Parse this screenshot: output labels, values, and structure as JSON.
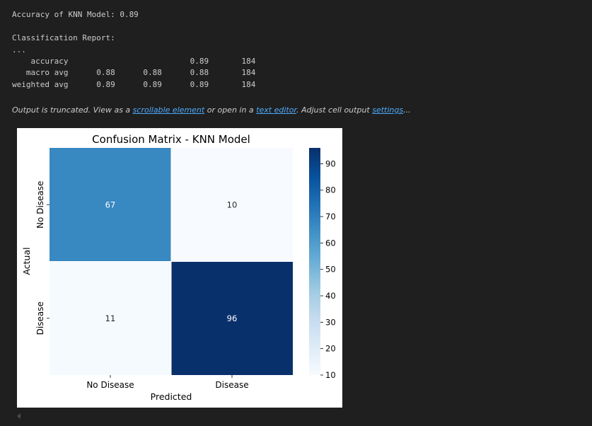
{
  "output": {
    "accuracy_line": "Accuracy of KNN Model: 0.89",
    "report_heading": "Classification Report:",
    "ellipsis": "...",
    "report_rows": [
      {
        "label": "accuracy",
        "precision": "",
        "recall": "",
        "f1": "0.89",
        "support": "184"
      },
      {
        "label": "macro avg",
        "precision": "0.88",
        "recall": "0.88",
        "f1": "0.88",
        "support": "184"
      },
      {
        "label": "weighted avg",
        "precision": "0.89",
        "recall": "0.89",
        "f1": "0.89",
        "support": "184"
      }
    ],
    "truncation": {
      "prefix": "Output is truncated. View as a ",
      "link1": "scrollable element",
      "middle": " or open in a ",
      "link2": "text editor",
      "middle2": ". Adjust cell output ",
      "link3": "settings",
      "suffix": "..."
    }
  },
  "chart_data": {
    "type": "heatmap",
    "title": "Confusion Matrix - KNN Model",
    "xlabel": "Predicted",
    "ylabel": "Actual",
    "x_categories": [
      "No Disease",
      "Disease"
    ],
    "y_categories": [
      "No Disease",
      "Disease"
    ],
    "values": [
      [
        67,
        10
      ],
      [
        11,
        96
      ]
    ],
    "colorbar": {
      "min": 10,
      "max": 96,
      "ticks": [
        10,
        20,
        30,
        40,
        50,
        60,
        70,
        80,
        90
      ],
      "colormap": "Blues",
      "color_low": "#f7fbff",
      "color_high": "#08306b"
    }
  }
}
